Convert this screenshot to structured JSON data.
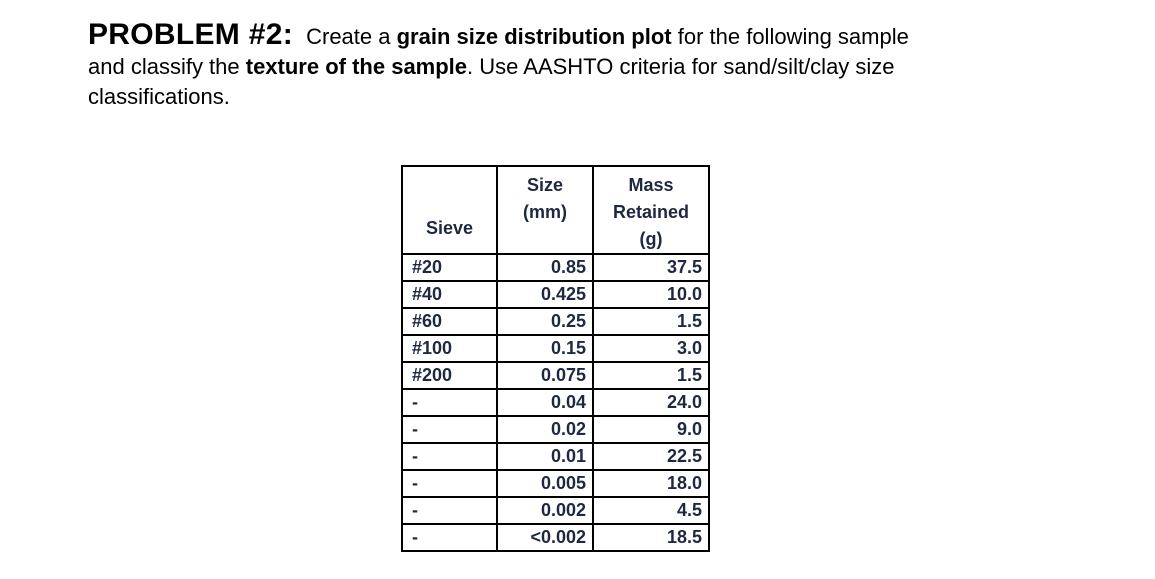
{
  "problem": {
    "heading": "PROBLEM #2:",
    "line1": {
      "a": " Create a ",
      "b": "grain size distribution plot",
      "c": " for the following sample"
    },
    "line2": {
      "a": "and classify the ",
      "b": "texture of the sample",
      "c": ". Use AASHTO criteria for sand/silt/clay size"
    },
    "line3": "classifications."
  },
  "table": {
    "headers": {
      "sieve": "Sieve",
      "size_line1": "Size",
      "size_line2": "(mm)",
      "mass_line1": "Mass",
      "mass_line2": "Retained",
      "mass_line3": "(g)"
    },
    "rows": [
      {
        "sieve": "#20",
        "size": "0.85",
        "mass": "37.5"
      },
      {
        "sieve": "#40",
        "size": "0.425",
        "mass": "10.0"
      },
      {
        "sieve": "#60",
        "size": "0.25",
        "mass": "1.5"
      },
      {
        "sieve": "#100",
        "size": "0.15",
        "mass": "3.0"
      },
      {
        "sieve": "#200",
        "size": "0.075",
        "mass": "1.5"
      },
      {
        "sieve": "-",
        "size": "0.04",
        "mass": "24.0"
      },
      {
        "sieve": "-",
        "size": "0.02",
        "mass": "9.0"
      },
      {
        "sieve": "-",
        "size": "0.01",
        "mass": "22.5"
      },
      {
        "sieve": "-",
        "size": "0.005",
        "mass": "18.0"
      },
      {
        "sieve": "-",
        "size": "0.002",
        "mass": "4.5"
      },
      {
        "sieve": "-",
        "size": "<0.002",
        "mass": "18.5"
      }
    ],
    "colors": {
      "table_text": "#1e2940",
      "border": "#000000",
      "body_text": "#000000",
      "background": "#ffffff"
    }
  }
}
